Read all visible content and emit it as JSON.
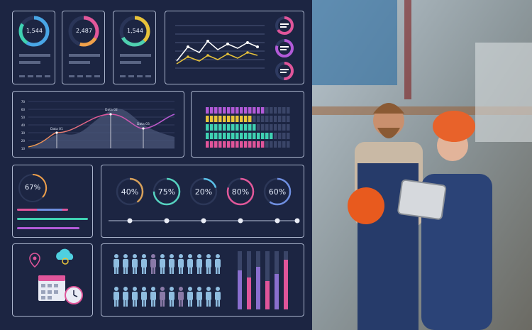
{
  "kpi_cards": [
    {
      "value": "1,544"
    },
    {
      "value": "2,487"
    },
    {
      "value": "1,544"
    }
  ],
  "wave_chart": {
    "y_ticks": [
      "10",
      "20",
      "30",
      "40",
      "50",
      "60",
      "70"
    ],
    "data_labels": [
      "Data 01",
      "Data 02",
      "Data 03"
    ]
  },
  "single_gauge": {
    "value": "67%"
  },
  "gauges": [
    {
      "value": "40%",
      "color": "#d8a15a"
    },
    {
      "value": "75%",
      "color": "#56d3c0"
    },
    {
      "value": "20%",
      "color": "#5bc0e8"
    },
    {
      "value": "80%",
      "color": "#e2589a"
    },
    {
      "value": "60%",
      "color": "#6f8fe0"
    }
  ],
  "colors": {
    "background": "#1c2542",
    "panel_border": "#aab4cc",
    "accent_pink": "#e0559a",
    "accent_cyan": "#4fd0e0",
    "accent_yellow": "#e8c33a"
  },
  "icons": [
    "location-pin-icon",
    "cloud-gear-icon",
    "calendar-icon",
    "stopwatch-icon",
    "people-icon"
  ]
}
